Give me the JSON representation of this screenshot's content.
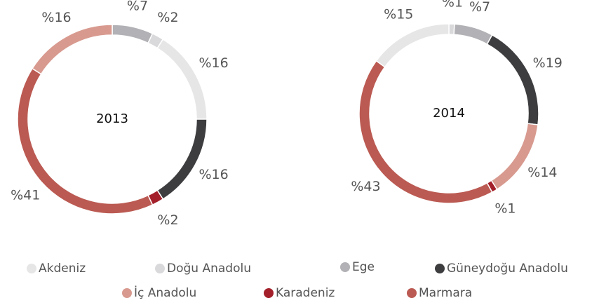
{
  "chart_data": [
    {
      "type": "pie",
      "title": "2013",
      "categories": [
        "Ege",
        "Doğu Anadolu",
        "Akdeniz",
        "Güneydoğu Anadolu",
        "Karadeniz",
        "Marmara",
        "İç Anadolu"
      ],
      "values": [
        7,
        2,
        16,
        16,
        2,
        41,
        16
      ],
      "value_labels": [
        "%7",
        "%2",
        "%16",
        "%16",
        "%2",
        "%41",
        "%16"
      ],
      "colors": [
        "#b1b1b6",
        "#d9d9dc",
        "#e6e6e6",
        "#3d3d3f",
        "#a3202a",
        "#bb5a52",
        "#d89a8f"
      ]
    },
    {
      "type": "pie",
      "title": "2014",
      "categories": [
        "Doğu Anadolu",
        "Ege",
        "Güneydoğu Anadolu",
        "İç Anadolu",
        "Karadeniz",
        "Marmara",
        "Akdeniz"
      ],
      "values": [
        1,
        7,
        19,
        14,
        1,
        43,
        15
      ],
      "value_labels": [
        "%1",
        "%7",
        "%19",
        "%14",
        "%1",
        "%43",
        "%15"
      ],
      "colors": [
        "#d9d9dc",
        "#b1b1b6",
        "#3d3d3f",
        "#d89a8f",
        "#a3202a",
        "#bb5a52",
        "#e6e6e6"
      ]
    }
  ],
  "legend": {
    "labels": [
      "Akdeniz",
      "Doğu Anadolu",
      "Ege",
      "Güneydoğu Anadolu",
      "İç Anadolu",
      "Karadeniz",
      "Marmara"
    ],
    "colors": [
      "#e6e6e6",
      "#d9d9dc",
      "#b1b1b6",
      "#3d3d3f",
      "#d89a8f",
      "#a3202a",
      "#bb5a52"
    ]
  }
}
